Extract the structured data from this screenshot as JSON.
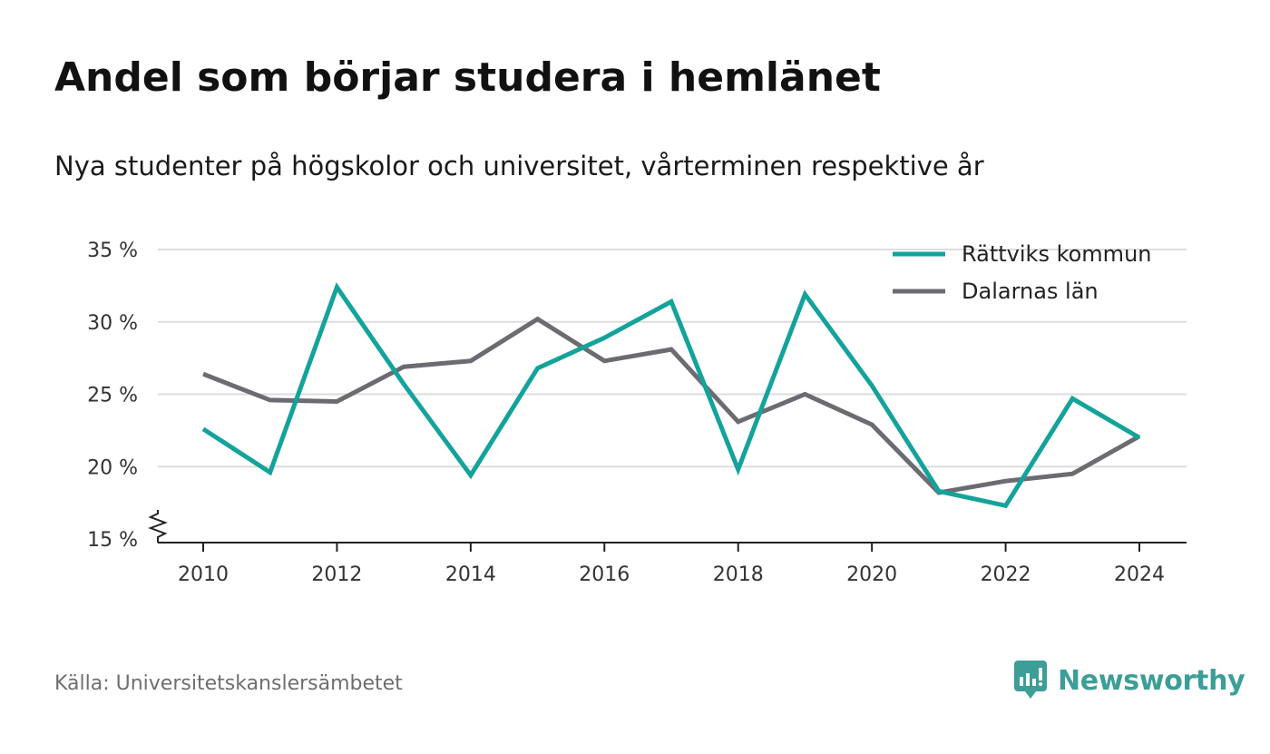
{
  "header": {
    "title": "Andel som börjar studera i hemlänet",
    "subtitle": "Nya studenter på högskolor och universitet, vårterminen respektive år"
  },
  "footer": {
    "source": "Källa: Universitetskanslersämbetet",
    "brand": "Newsworthy",
    "brand_icon": "newsworthy-logo-icon"
  },
  "colors": {
    "series_1": "#13a39a",
    "series_2": "#6d6b72",
    "grid": "#dddddd",
    "axis": "#222222",
    "brand": "#3c9e97"
  },
  "chart_data": {
    "type": "line",
    "title": "Andel som börjar studera i hemlänet",
    "subtitle": "Nya studenter på högskolor och universitet, vårterminen respektive år",
    "xlabel": "",
    "ylabel": "",
    "x": [
      2010,
      2011,
      2012,
      2013,
      2014,
      2015,
      2016,
      2017,
      2018,
      2019,
      2020,
      2021,
      2022,
      2023,
      2024
    ],
    "x_ticks": [
      "2010",
      "2012",
      "2014",
      "2016",
      "2018",
      "2020",
      "2022",
      "2024"
    ],
    "y_ticks": [
      "15 %",
      "20 %",
      "25 %",
      "30 %",
      "35 %"
    ],
    "ylim": [
      15,
      35
    ],
    "y_axis_break": true,
    "grid": true,
    "legend_position": "top-right",
    "series": [
      {
        "name": "Rättviks kommun",
        "values": [
          22.6,
          19.6,
          32.4,
          25.7,
          19.4,
          26.8,
          28.9,
          31.4,
          19.8,
          31.9,
          25.6,
          18.3,
          17.3,
          24.7,
          22.0
        ]
      },
      {
        "name": "Dalarnas län",
        "values": [
          26.4,
          24.6,
          24.5,
          26.9,
          27.3,
          30.2,
          27.3,
          28.1,
          23.1,
          25.0,
          22.9,
          18.2,
          19.0,
          19.5,
          22.1
        ]
      }
    ]
  }
}
